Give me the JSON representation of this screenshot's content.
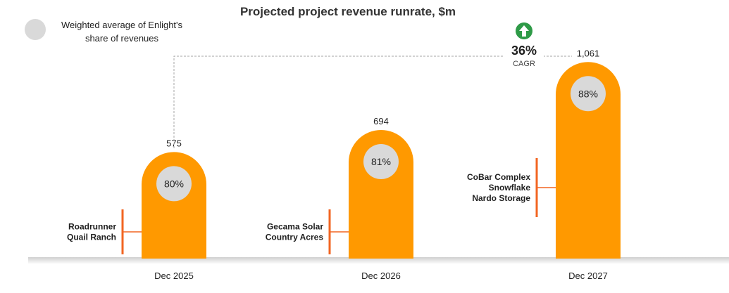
{
  "chart_data": {
    "type": "bar",
    "title": "Projected project revenue runrate, $m",
    "categories": [
      "Dec 2025",
      "Dec 2026",
      "Dec 2027"
    ],
    "values": [
      575,
      694,
      1061
    ],
    "value_labels": [
      "575",
      "694",
      "1,061"
    ],
    "share_pct": [
      "80%",
      "81%",
      "88%"
    ],
    "projects": [
      [
        "Roadrunner",
        "Quail Ranch"
      ],
      [
        "Gecama Solar",
        "Country Acres"
      ],
      [
        "CoBar Complex",
        "Snowflake",
        "Nardo Storage"
      ]
    ],
    "legend": [
      "Weighted average of Enlight's",
      "share of revenues"
    ],
    "cagr": {
      "value": "36%",
      "label": "CAGR"
    },
    "ylim": [
      0,
      1100
    ],
    "xlabel": "",
    "ylabel": ""
  },
  "colors": {
    "bar": "#ff9900",
    "bracket": "#f26522",
    "circle": "#d9d9d9",
    "baseline": "#d0d0d0",
    "connector": "#a6a6a6",
    "arrow": "#2e9a47"
  }
}
